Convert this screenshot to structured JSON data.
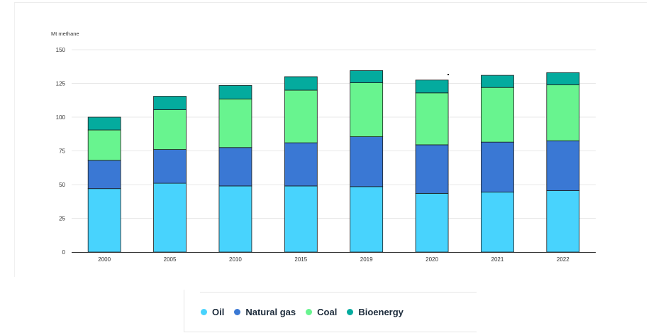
{
  "chart_data": {
    "type": "bar",
    "stacked": true,
    "ylabel": "Mt methane",
    "categories": [
      "2000",
      "2005",
      "2010",
      "2015",
      "2019",
      "2020",
      "2021",
      "2022"
    ],
    "ylim": [
      0,
      150
    ],
    "yticks": [
      0,
      25,
      50,
      75,
      100,
      125,
      150
    ],
    "grid": true,
    "legend_position": "bottom",
    "series": [
      {
        "name": "Oil",
        "color": "#48d3fd",
        "values": [
          47,
          51,
          49,
          49,
          48.5,
          43.5,
          44.5,
          45.5
        ]
      },
      {
        "name": "Natural gas",
        "color": "#3a78d4",
        "values": [
          21,
          25,
          28.5,
          32,
          37,
          36,
          37,
          37
        ]
      },
      {
        "name": "Coal",
        "color": "#68f48f",
        "values": [
          22.5,
          29.5,
          36,
          39,
          40,
          38.5,
          40.5,
          41.5
        ]
      },
      {
        "name": "Bioenergy",
        "color": "#04ab9e",
        "values": [
          9.5,
          10,
          10,
          10,
          9,
          9.5,
          9,
          9
        ]
      }
    ]
  }
}
